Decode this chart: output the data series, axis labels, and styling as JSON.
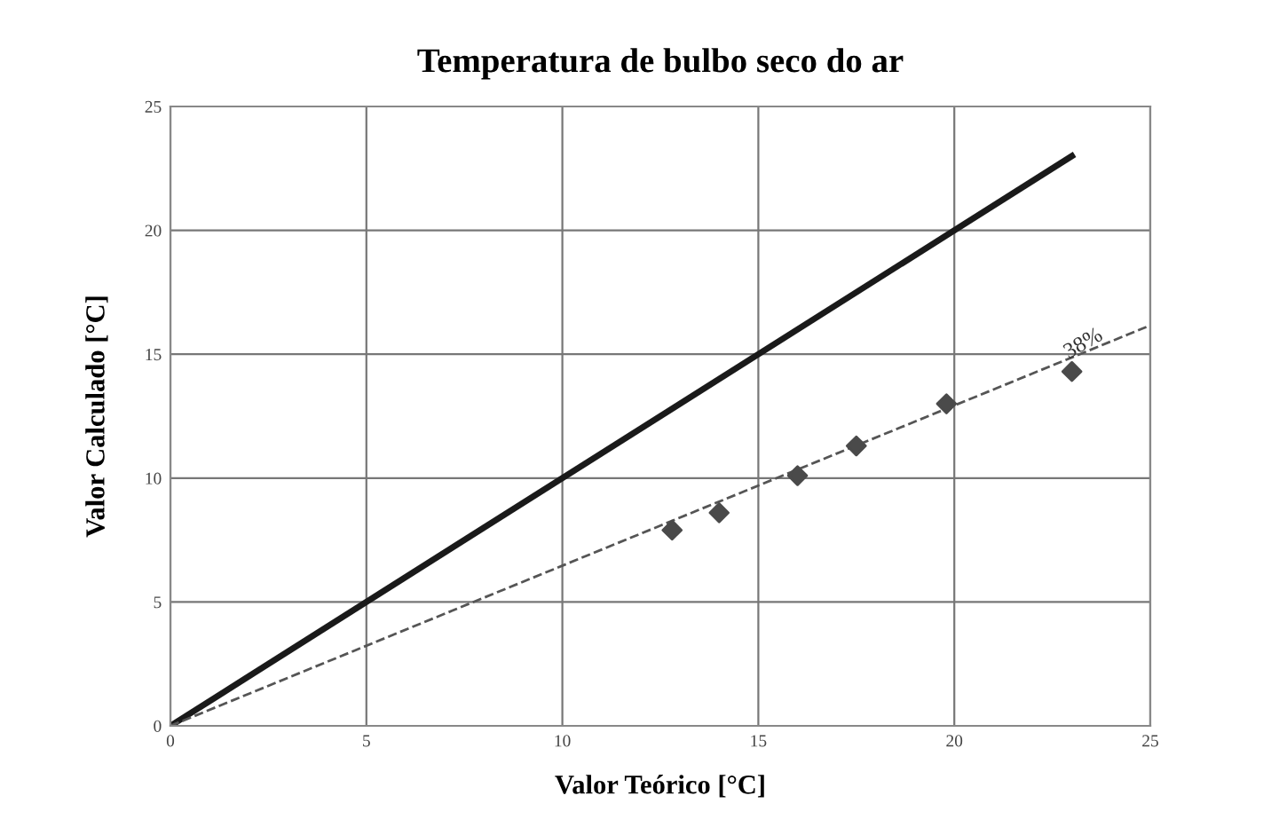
{
  "chart_data": {
    "type": "scatter",
    "title": "Temperatura de bulbo seco do ar",
    "xlabel": "Valor Teórico [°C]",
    "ylabel": "Valor Calculado [°C]",
    "x": [
      12.8,
      14.0,
      16.0,
      17.5,
      19.8,
      23.0
    ],
    "series": [
      {
        "color": "#4a4a4a",
        "marker": "diamond",
        "values": [
          7.9,
          8.6,
          10.1,
          11.3,
          13.0,
          14.3
        ]
      },
      {
        "type": "line",
        "color": "#1a1a1a",
        "line_style": "solid",
        "marker": "none",
        "x": [
          0,
          23
        ],
        "values": [
          0,
          23
        ]
      },
      {
        "type": "line",
        "color": "#555555",
        "line_style": "dashed",
        "marker": "none",
        "x": [
          0,
          24.9
        ],
        "values": [
          0,
          16.1
        ]
      }
    ],
    "annotations": [
      {
        "text": "38%",
        "x": 23.3,
        "y": 15.4
      }
    ],
    "xlim": [
      0,
      25
    ],
    "ylim": [
      0,
      25
    ],
    "xticks": [
      0,
      5,
      10,
      15,
      20,
      25
    ],
    "yticks": [
      0,
      5,
      10,
      15,
      20,
      25
    ],
    "grid": true,
    "legend": false
  }
}
